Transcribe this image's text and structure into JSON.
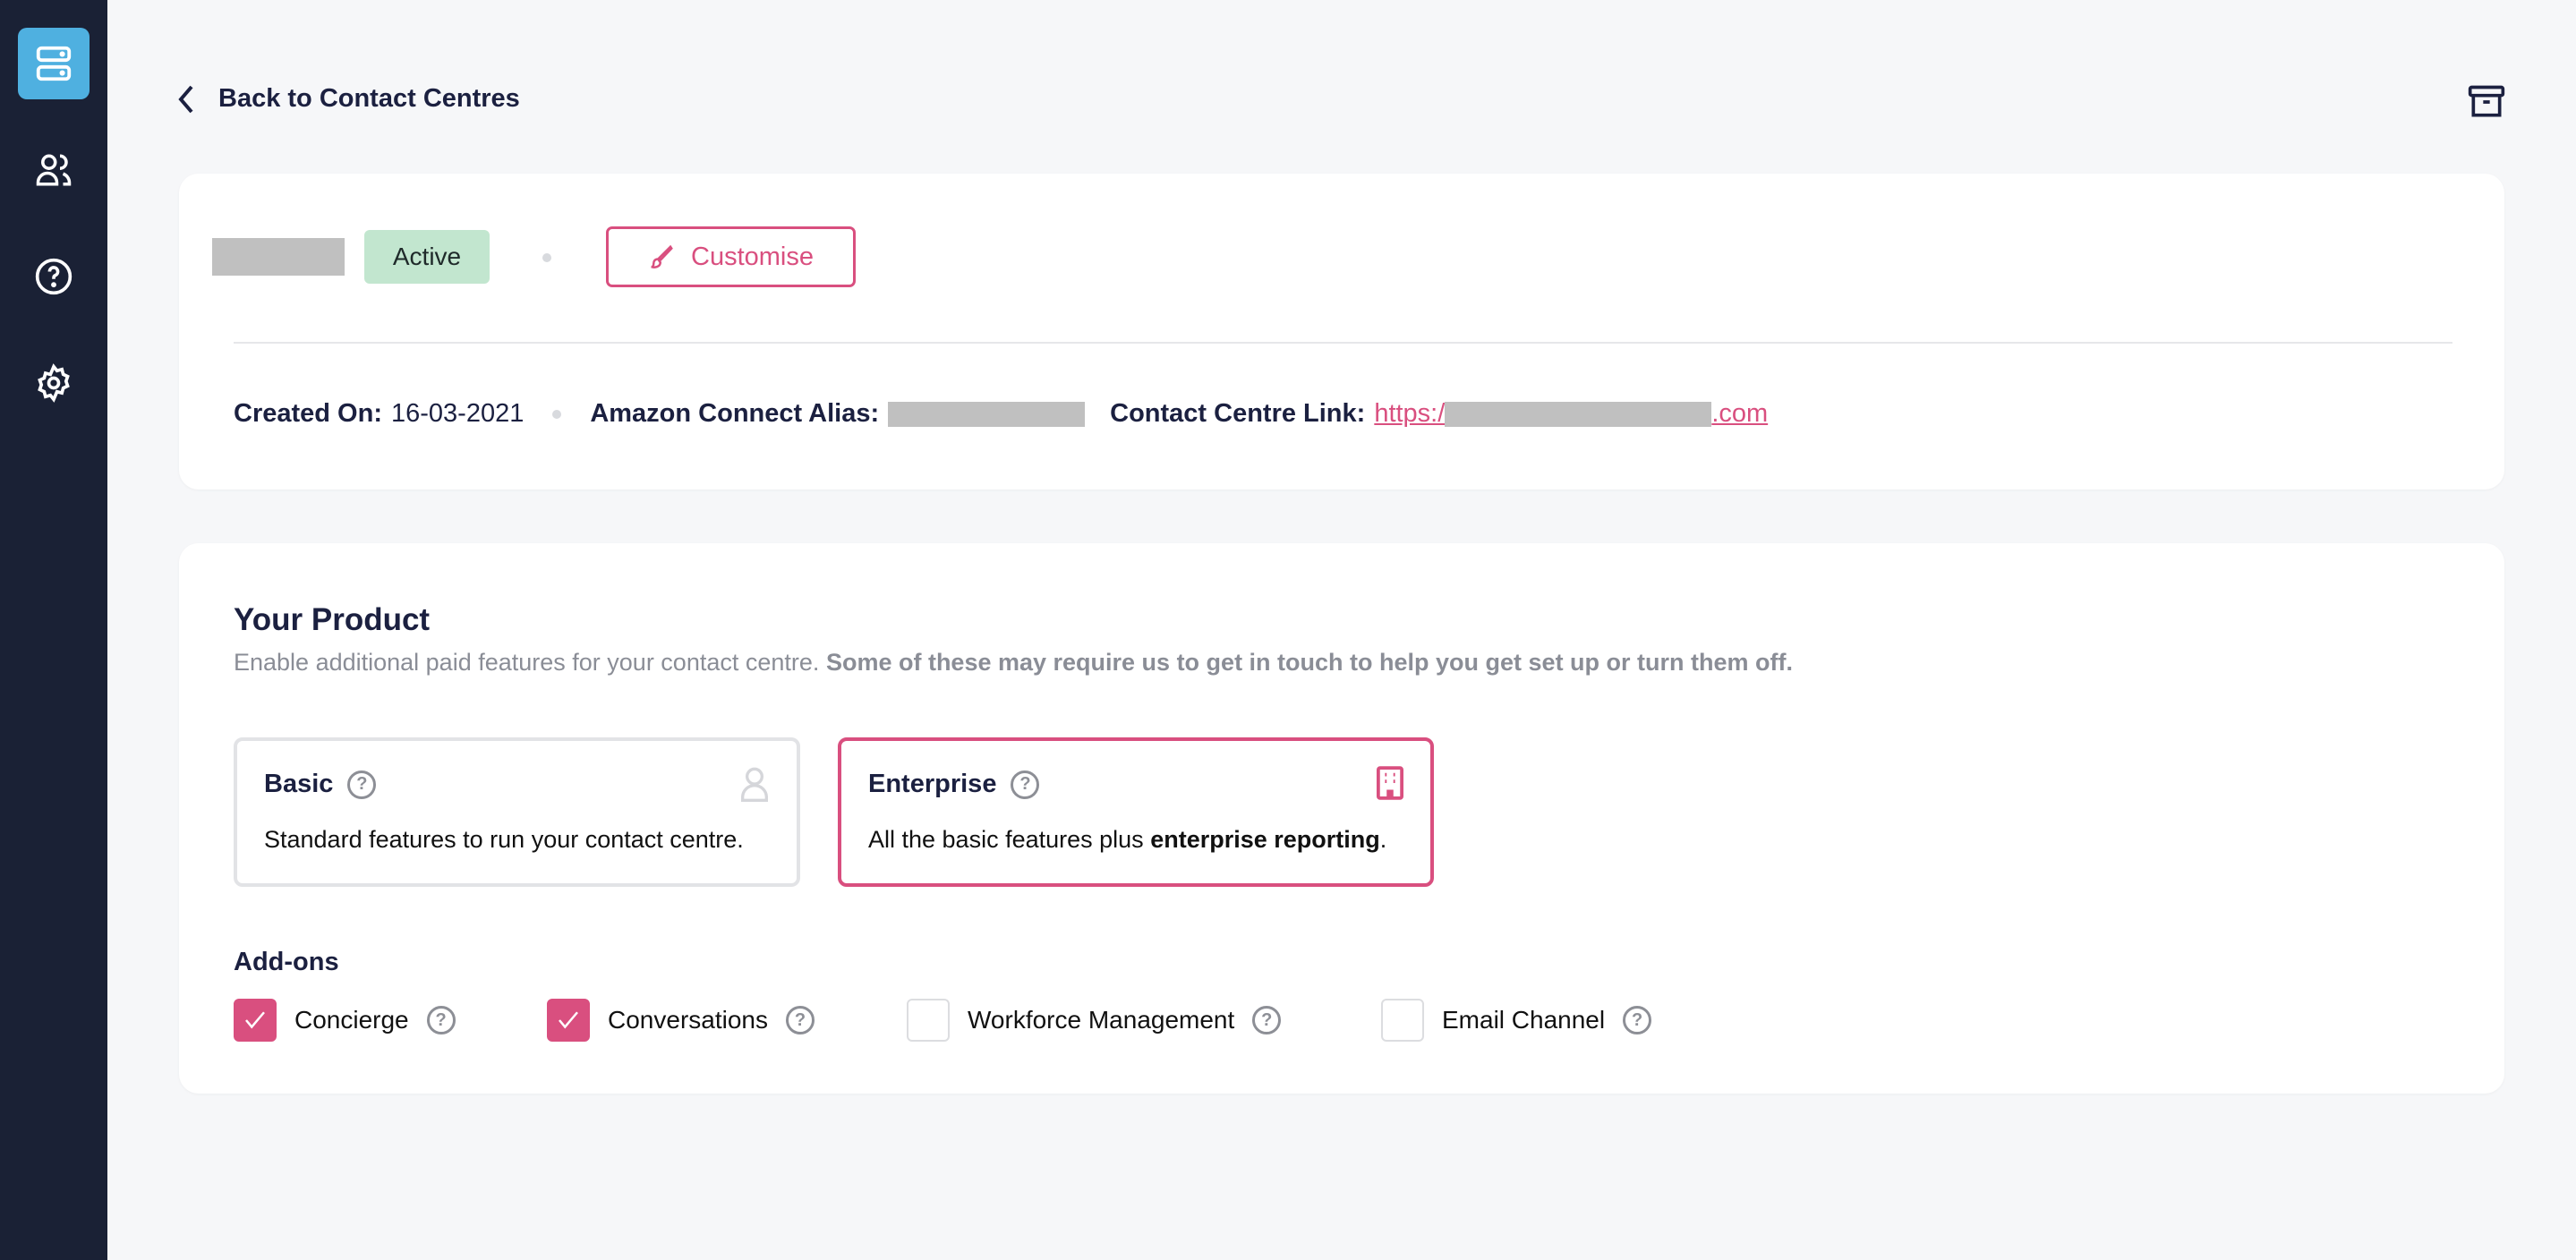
{
  "sidebar": {
    "items": [
      {
        "icon": "server-icon",
        "active": true
      },
      {
        "icon": "users-icon",
        "active": false
      },
      {
        "icon": "help-icon",
        "active": false
      },
      {
        "icon": "gear-icon",
        "active": false
      }
    ],
    "active_color": "#4fb0e0",
    "bg_color": "#1a2135"
  },
  "header": {
    "back_label": "Back to Contact Centres",
    "archive_icon": "archive-icon"
  },
  "summary": {
    "status": "Active",
    "customise_label": "Customise",
    "created_label": "Created On:",
    "created_value": "16-03-2021",
    "alias_label": "Amazon Connect Alias:",
    "link_label": "Contact Centre Link:",
    "link_prefix": "https:/",
    "link_suffix": ".com"
  },
  "product": {
    "title": "Your Product",
    "subtitle": "Enable additional paid features for your contact centre.",
    "subtitle_bold": "Some of these may require us to get in touch to help you get set up or turn them off.",
    "plans": [
      {
        "name": "Basic",
        "desc": "Standard features to run your contact centre.",
        "icon": "user-icon",
        "selected": false
      },
      {
        "name": "Enterprise",
        "desc": "All the basic features plus",
        "desc_bold": "enterprise reporting",
        "desc_end": ".",
        "icon": "building-icon",
        "selected": true
      }
    ],
    "addons_title": "Add-ons",
    "addons": [
      {
        "label": "Concierge",
        "checked": true
      },
      {
        "label": "Conversations",
        "checked": true
      },
      {
        "label": "Workforce Management",
        "checked": false
      },
      {
        "label": "Email Channel",
        "checked": false
      }
    ]
  },
  "accent_color": "#d94f7f"
}
